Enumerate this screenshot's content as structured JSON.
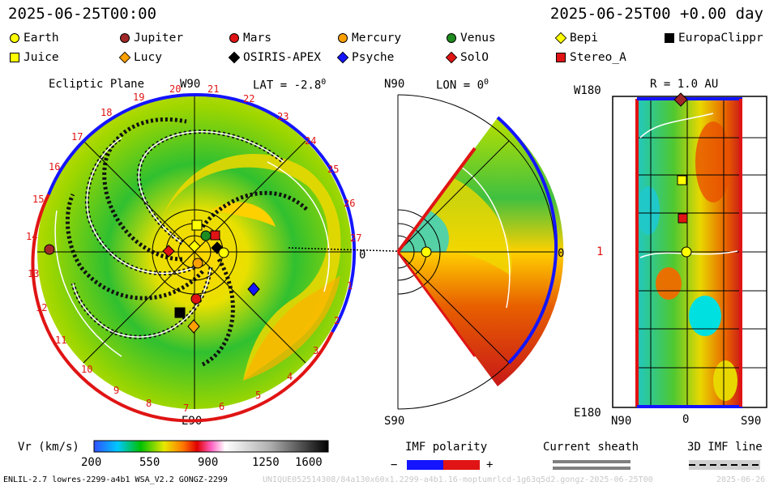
{
  "header": {
    "timestamp": "2025-06-25T00:00",
    "forecast": "2025-06-25T00 +0.00 day"
  },
  "legend": [
    {
      "name": "Earth",
      "shape": "circle",
      "color": "#ffff00"
    },
    {
      "name": "Jupiter",
      "shape": "circle",
      "color": "#a02828"
    },
    {
      "name": "Mars",
      "shape": "circle",
      "color": "#e01414"
    },
    {
      "name": "Mercury",
      "shape": "circle",
      "color": "#ffa000"
    },
    {
      "name": "Venus",
      "shape": "circle",
      "color": "#1e8c1e"
    },
    {
      "name": "Bepi",
      "shape": "diamond",
      "color": "#ffff00"
    },
    {
      "name": "EuropaClippr",
      "shape": "square",
      "color": "#000000"
    },
    {
      "name": "Juice",
      "shape": "square",
      "color": "#ffff00"
    },
    {
      "name": "Lucy",
      "shape": "diamond",
      "color": "#ffa000"
    },
    {
      "name": "OSIRIS-APEX",
      "shape": "diamond",
      "color": "#000000"
    },
    {
      "name": "Psyche",
      "shape": "diamond",
      "color": "#1414ff"
    },
    {
      "name": "SolO",
      "shape": "diamond",
      "color": "#e01414"
    },
    {
      "name": "Stereo_A",
      "shape": "square",
      "color": "#e01414"
    }
  ],
  "ecliptic": {
    "title": "Ecliptic Plane",
    "top_label": "W90",
    "bottom_label": "E90",
    "lat_label": "LAT = -2.8",
    "lat_unit": "0",
    "sector_labels": [
      "20",
      "21",
      "22",
      "23",
      "24",
      "25",
      "26",
      "27",
      "1",
      "2",
      "3",
      "4",
      "5",
      "6",
      "7",
      "8",
      "9",
      "10",
      "11",
      "12",
      "13",
      "14",
      "15",
      "16",
      "17",
      "18",
      "19"
    ]
  },
  "meridional": {
    "top_label": "N90",
    "bottom_label": "S90",
    "lon_label": "LON = 0",
    "lon_unit": "0",
    "left_label": "0",
    "right_label": "0"
  },
  "radial": {
    "title": "R = 1.0 AU",
    "top_left": "W180",
    "mid_left": "1",
    "bottom_left": "E180",
    "x_left": "N90",
    "x_mid": "0",
    "x_right": "S90"
  },
  "colorbar": {
    "label": "Vr (km/s)",
    "ticks": [
      "200",
      "550",
      "900",
      "1250",
      "1600"
    ]
  },
  "imf": {
    "label": "IMF polarity",
    "minus": "−",
    "plus": "+"
  },
  "sheath": {
    "label": "Current sheath"
  },
  "imf3d": {
    "label": "3D IMF line"
  },
  "footer": {
    "model": "ENLIL-2.7 lowres-2299-a4b1 WSA_V2.2 GONGZ-2299",
    "run": "UNIQUE052514308/84a130x60x1.2299-a4b1.16-moptumrlcd-1g63q5d2.gongz-2025-06-25T00",
    "date": "2025-06-26"
  }
}
